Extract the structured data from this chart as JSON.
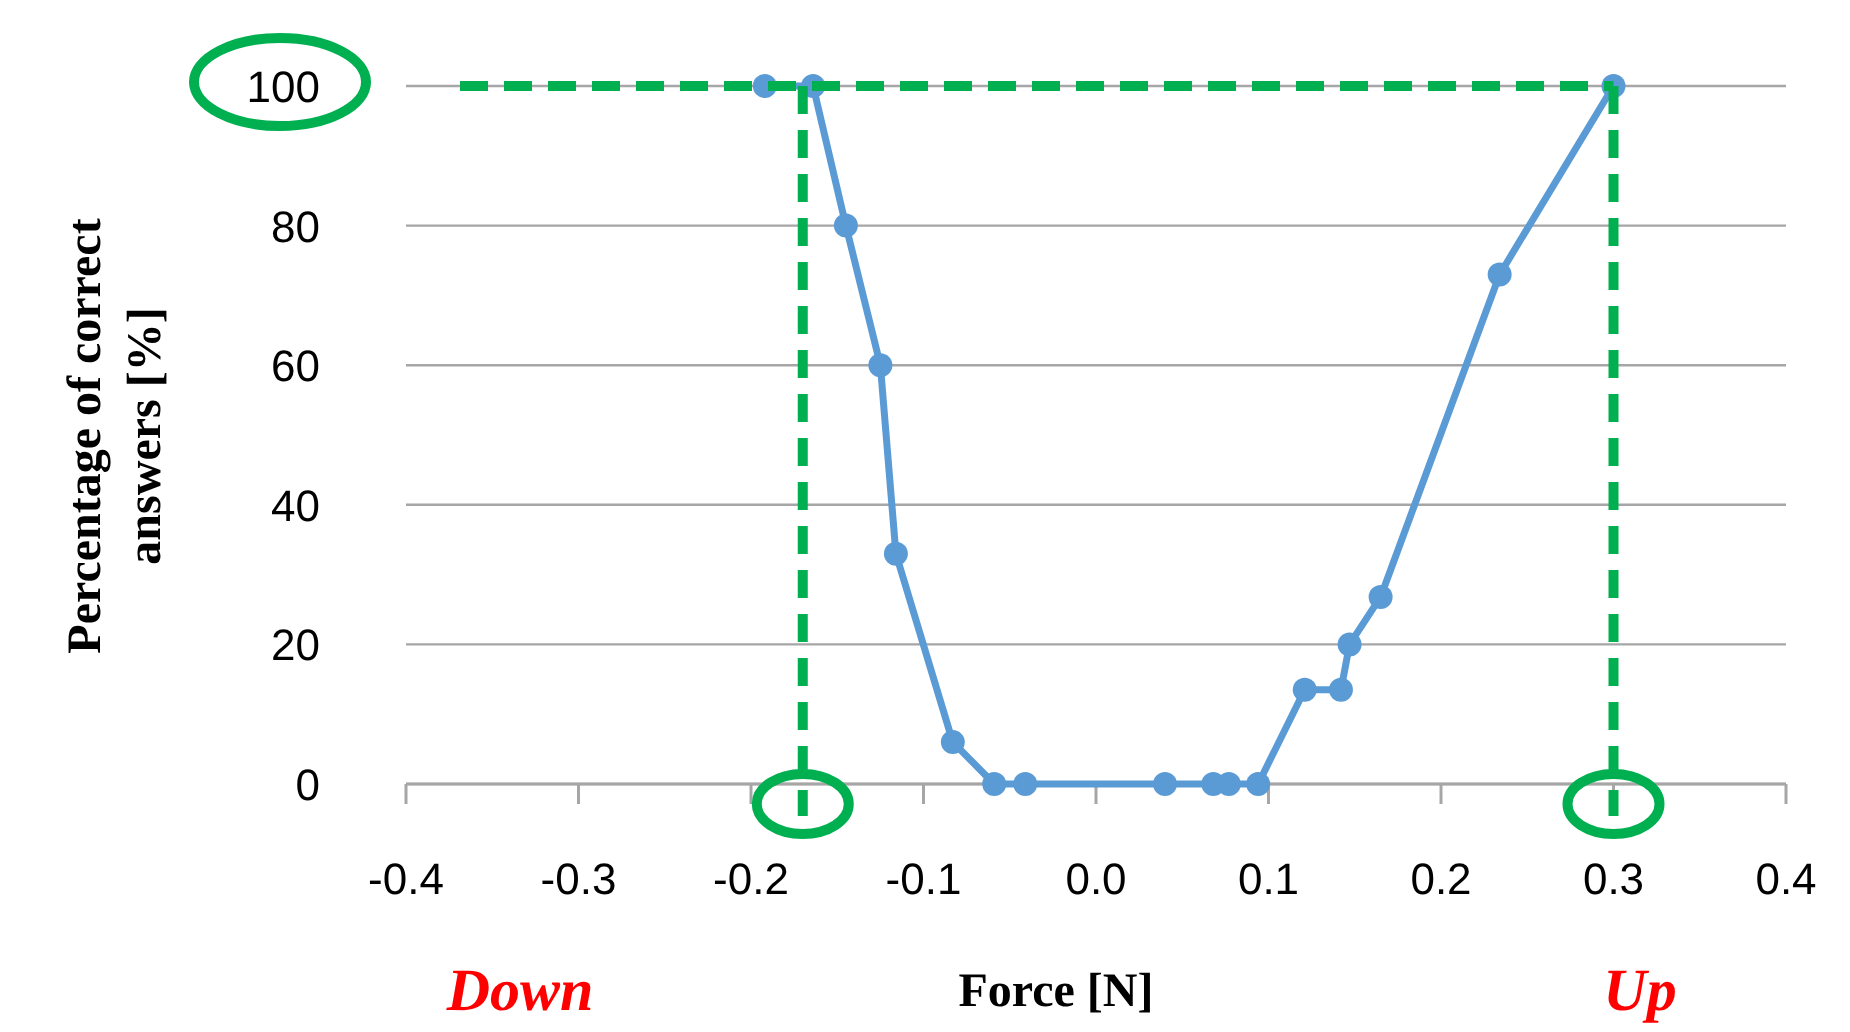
{
  "chart_data": {
    "type": "line",
    "xlabel": "Force [N]",
    "ylabel": "Percentage of correct answers [%]",
    "x": [
      -0.192,
      -0.164,
      -0.145,
      -0.125,
      -0.116,
      -0.083,
      -0.059,
      -0.041,
      0.04,
      0.068,
      0.077,
      0.094,
      0.121,
      0.142,
      0.147,
      0.165,
      0.234,
      0.3
    ],
    "series": [
      {
        "color": "#5b9bd5",
        "values": [
          100,
          100,
          80,
          60,
          33,
          6,
          0,
          0,
          0,
          0,
          0,
          0,
          13.5,
          13.5,
          20,
          26.8,
          73,
          100
        ]
      }
    ],
    "xlim": [
      -0.4,
      0.4
    ],
    "xticks": [
      {
        "value": -0.4,
        "label": "-0.4"
      },
      {
        "value": -0.3,
        "label": "-0.3"
      },
      {
        "value": -0.2,
        "label": "-0.2"
      },
      {
        "value": -0.1,
        "label": "-0.1"
      },
      {
        "value": 0,
        "label": "0.0"
      },
      {
        "value": 0.1,
        "label": "0.1"
      },
      {
        "value": 0.2,
        "label": "0.2"
      },
      {
        "value": 0.3,
        "label": "0.3"
      },
      {
        "value": 0.4,
        "label": "0.4"
      }
    ],
    "ylim": [
      0,
      100
    ],
    "yticks": [
      0,
      20,
      40,
      60,
      80,
      100
    ],
    "grid": "y",
    "marker": "circle",
    "line_style": "solid",
    "ref_lines": [
      {
        "axis": "y",
        "value": 100,
        "color": "#00b050",
        "line_style": "dashed"
      },
      {
        "axis": "x",
        "value": -0.17,
        "color": "#00b050",
        "line_style": "dashed"
      },
      {
        "axis": "x",
        "value": 0.3,
        "color": "#00b050",
        "line_style": "dashed"
      }
    ],
    "annotations": [
      "Down",
      "Up"
    ]
  }
}
